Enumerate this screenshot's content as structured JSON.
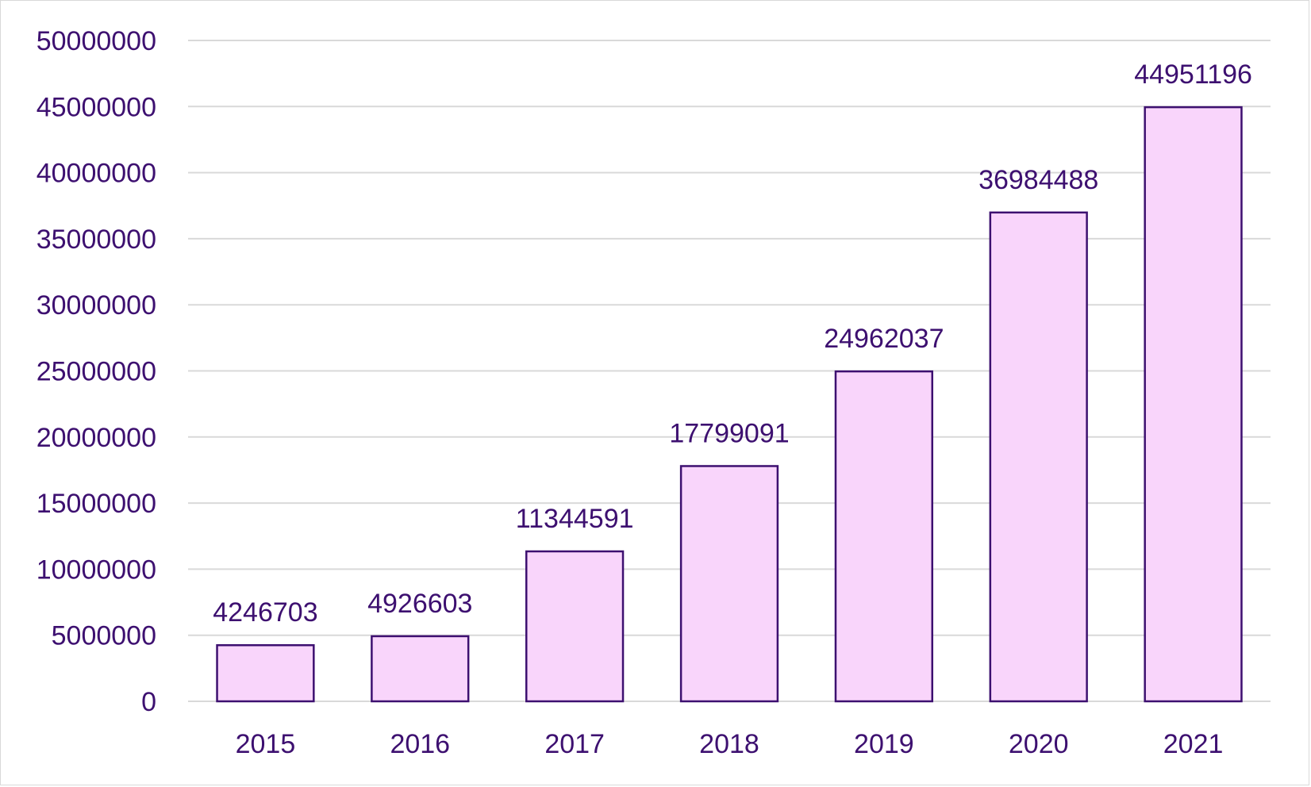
{
  "chart_data": {
    "type": "bar",
    "categories": [
      "2015",
      "2016",
      "2017",
      "2018",
      "2019",
      "2020",
      "2021"
    ],
    "values": [
      4246703,
      4926603,
      11344591,
      17799091,
      24962037,
      36984488,
      44951196
    ],
    "data_labels": [
      "4246703",
      "4926603",
      "11344591",
      "17799091",
      "24962037",
      "36984488",
      "44951196"
    ],
    "yticks": [
      "0",
      "5000000",
      "10000000",
      "15000000",
      "20000000",
      "25000000",
      "30000000",
      "35000000",
      "40000000",
      "45000000",
      "50000000"
    ],
    "title": "",
    "xlabel": "",
    "ylabel": "",
    "ylim": [
      0,
      50000000
    ],
    "grid": true,
    "legend": "none",
    "colors": {
      "bar_fill": "#f9d5fb",
      "bar_stroke": "#3d1070",
      "text": "#3d1070",
      "grid": "#d9d9d9"
    }
  }
}
